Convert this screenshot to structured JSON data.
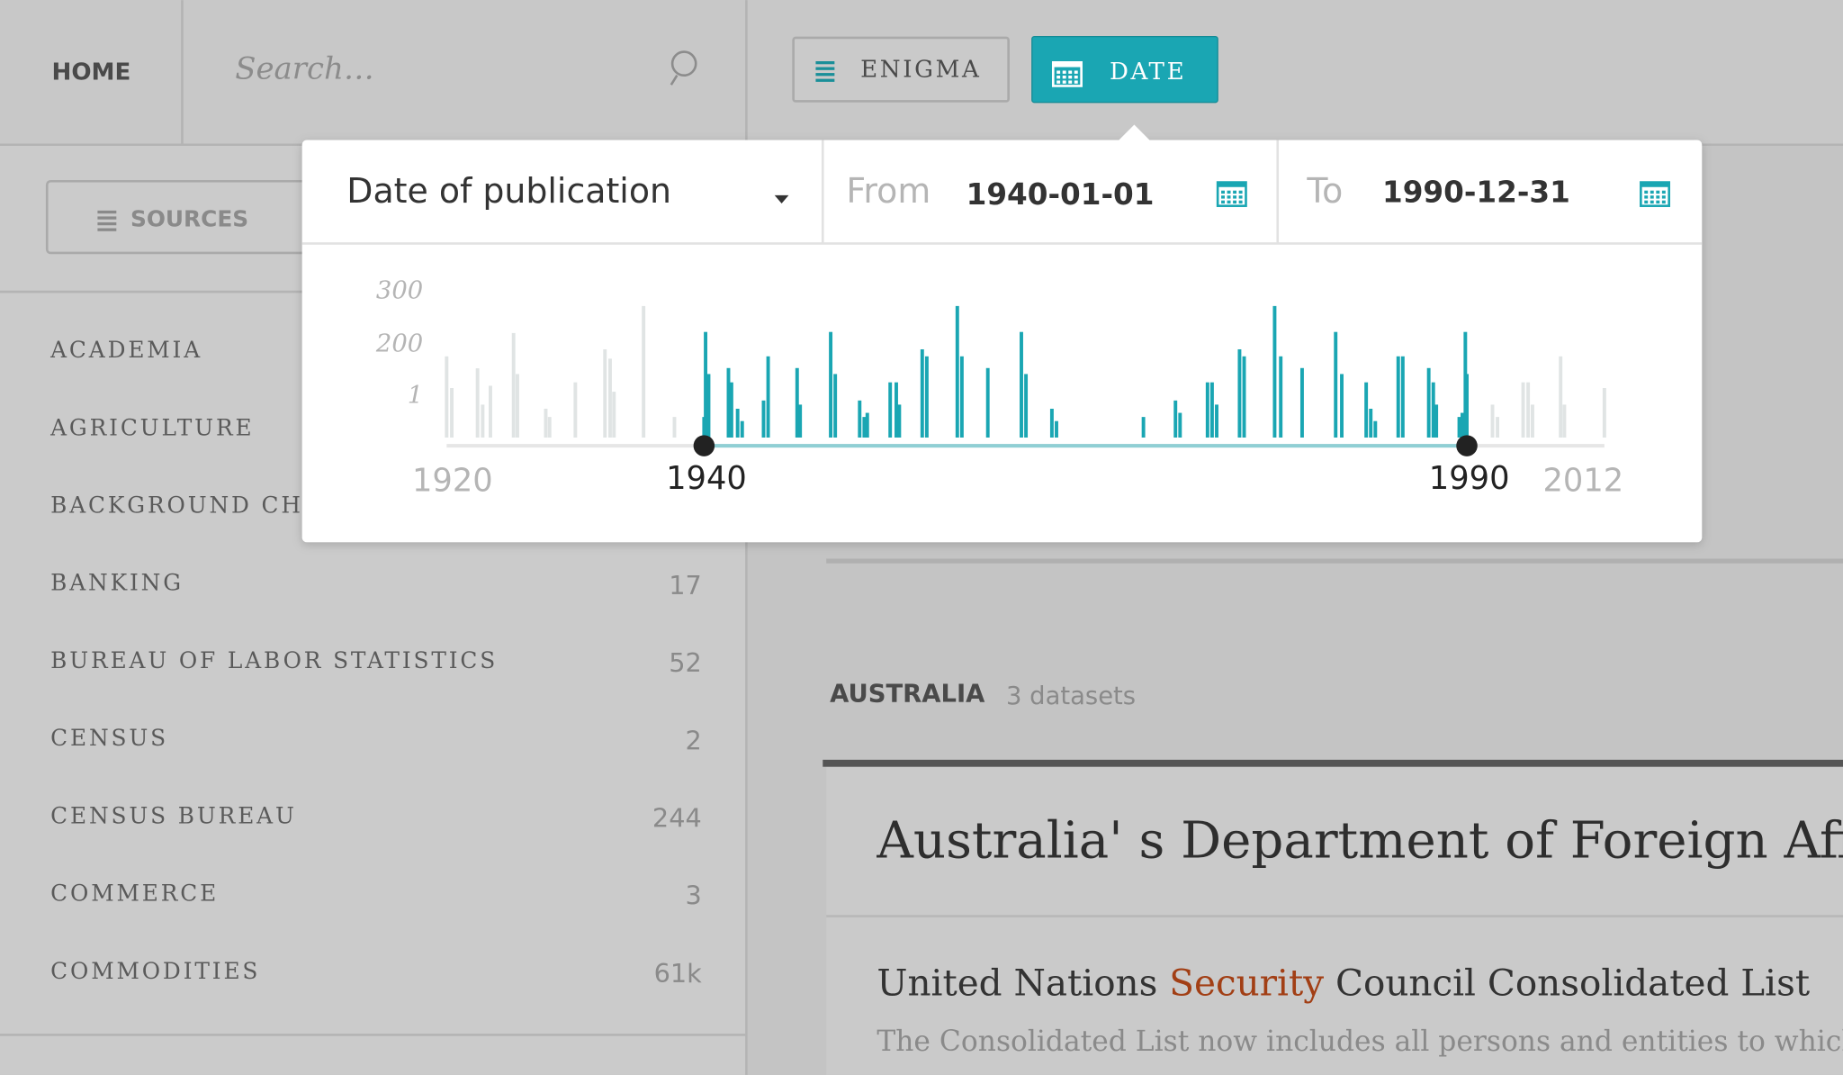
{
  "nav": {
    "home": "HOME",
    "search_placeholder": "Search…",
    "enigma_button": "ENIGMA",
    "date_button": "DATE"
  },
  "sidebar": {
    "sources_button": "SOURCES",
    "items": [
      {
        "label": "ACADEMIA"
      },
      {
        "label": "AGRICULTURE"
      },
      {
        "label": "BACKGROUND CH"
      },
      {
        "label": "BANKING",
        "count": 17
      },
      {
        "label": "BUREAU OF LABOR STATISTICS",
        "count": 52
      },
      {
        "label": "CENSUS",
        "count": 2
      },
      {
        "label": "CENSUS BUREAU",
        "count": 244
      },
      {
        "label": "COMMERCE",
        "count": 3
      },
      {
        "label": "COMMODITIES",
        "count": "61k"
      }
    ]
  },
  "popup": {
    "field": "Date of publication",
    "from_label": "From",
    "from": "1940-01-01",
    "to_label": "To",
    "to": "1990-12-31"
  },
  "chart_data": {
    "type": "bar",
    "x": [
      1920.0,
      1920.4,
      1922.4,
      1922.8,
      1923.4,
      1925.2,
      1925.5,
      1927.7,
      1928.0,
      1930.0,
      1932.3,
      1932.7,
      1933.0,
      1935.3,
      1937.7,
      1940.0,
      1940.1,
      1940.3,
      1941.6,
      1941.8,
      1942.2,
      1942.5,
      1943.9,
      1944.2,
      1946.1,
      1946.3,
      1948.3,
      1948.6,
      1950.2,
      1950.5,
      1950.7,
      1952.2,
      1952.6,
      1952.8,
      1954.3,
      1954.6,
      1956.6,
      1956.9,
      1958.6,
      1960.8,
      1961.1,
      1962.8,
      1963.1,
      1968.8,
      1970.9,
      1971.2,
      1973.0,
      1973.3,
      1973.6,
      1975.1,
      1975.4,
      1977.4,
      1977.8,
      1979.2,
      1981.4,
      1981.8,
      1983.4,
      1983.7,
      1984.0,
      1985.5,
      1985.8,
      1987.5,
      1987.8,
      1988.0,
      1989.5,
      1989.7,
      1989.9,
      1990.0,
      1994.1,
      1994.9,
      1999.0,
      1999.8,
      2000.5,
      2005.0,
      2005.6,
      2012.0
    ],
    "values": [
      155,
      33,
      109,
      0.8,
      42,
      222,
      87,
      0.7,
      0.5,
      55,
      182,
      146,
      19,
      273,
      0.5,
      0.5,
      224,
      87,
      110,
      55,
      0.7,
      0.4,
      0.9,
      155,
      110,
      0.8,
      224,
      87,
      0.9,
      0.5,
      0.6,
      55,
      55,
      0.8,
      182,
      155,
      273,
      155,
      110,
      224,
      87,
      0.7,
      0.4,
      0.5,
      0.9,
      0.6,
      55,
      55,
      0.8,
      182,
      155,
      273,
      155,
      110,
      224,
      87,
      55,
      0.7,
      0.4,
      155,
      155,
      110,
      55,
      0.8,
      0.5,
      0.6,
      224,
      87,
      0.8,
      0.5,
      55,
      55,
      0.8,
      155,
      0.8,
      33
    ],
    "color": "#1aa6b3",
    "out_of_range_color": "#e0e4e4",
    "ylim": [
      0,
      300
    ],
    "yticks": [
      1,
      200,
      300
    ],
    "xlim": [
      1920,
      2012
    ],
    "xticks": [
      1920,
      1940,
      1990,
      2012
    ]
  },
  "results": {
    "group": "AUSTRALIA",
    "group_count": "3 datasets",
    "card_title": "Australia' s Department of Foreign Affai",
    "dataset_title": {
      "before": "United Nations",
      "highlight": "Security",
      "after": "Council Consolidated List"
    },
    "dataset_description": "The Consolidated List now includes all persons and entities to which t"
  }
}
